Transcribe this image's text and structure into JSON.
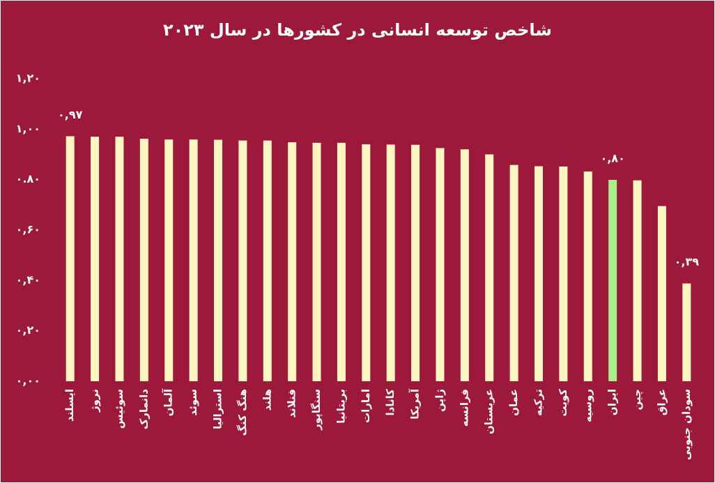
{
  "chart_data": {
    "type": "bar",
    "title": "شاخص توسعه انسانی در کشورها در سال ۲۰۲۳",
    "categories": [
      "ایسلند",
      "نروژ",
      "سوئیس",
      "دانمارک",
      "آلمان",
      "سوئد",
      "استرالیا",
      "هنگ کنگ",
      "هلند",
      "فنلاند",
      "سنگاپور",
      "بریتانیا",
      "امارات",
      "کانادا",
      "آمریکا",
      "ژاپن",
      "فرانسه",
      "عربستان",
      "عمان",
      "ترکیه",
      "کویت",
      "روسیه",
      "ایران",
      "چین",
      "عراق",
      "سودان جنوبی"
    ],
    "values": [
      0.972,
      0.97,
      0.97,
      0.962,
      0.959,
      0.959,
      0.958,
      0.955,
      0.955,
      0.948,
      0.946,
      0.946,
      0.94,
      0.939,
      0.938,
      0.925,
      0.92,
      0.9,
      0.858,
      0.853,
      0.852,
      0.832,
      0.799,
      0.797,
      0.695,
      0.388
    ],
    "value_labels": [
      "۰,۹۷",
      null,
      null,
      null,
      null,
      null,
      null,
      null,
      null,
      null,
      null,
      null,
      null,
      null,
      null,
      null,
      null,
      null,
      null,
      null,
      null,
      null,
      "۰,۸۰",
      null,
      null,
      "۰,۳۹"
    ],
    "colors": [
      "#fdf6c3",
      "#fdf6c3",
      "#fdf6c3",
      "#fdf6c3",
      "#fdf6c3",
      "#fdf6c3",
      "#fdf6c3",
      "#fdf6c3",
      "#fdf6c3",
      "#fdf6c3",
      "#fdf6c3",
      "#fdf6c3",
      "#fdf6c3",
      "#fdf6c3",
      "#fdf6c3",
      "#fdf6c3",
      "#fdf6c3",
      "#fdf6c3",
      "#fdf6c3",
      "#fdf6c3",
      "#fdf6c3",
      "#fdf6c3",
      "#a8f08c",
      "#fdf6c3",
      "#fdf6c3",
      "#fdf6c3"
    ],
    "ylim": [
      0,
      1.2
    ],
    "yticks": [
      {
        "value": 0,
        "label": "۰,۰۰"
      },
      {
        "value": 0.2,
        "label": "۰,۲۰"
      },
      {
        "value": 0.4,
        "label": "۰,۴۰"
      },
      {
        "value": 0.6,
        "label": "۰,۶۰"
      },
      {
        "value": 0.8,
        "label": "۰.۸۰"
      },
      {
        "value": 1.0,
        "label": "۱,۰۰"
      },
      {
        "value": 1.2,
        "label": "۱,۲۰"
      }
    ],
    "grid": false
  }
}
